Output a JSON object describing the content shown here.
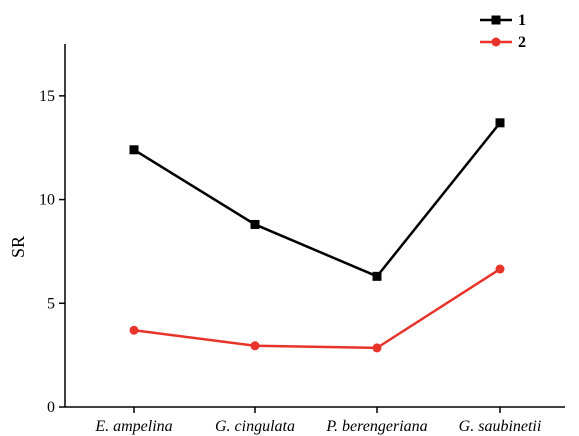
{
  "chart_data": {
    "type": "line",
    "title": "",
    "xlabel": "",
    "ylabel": "SR",
    "categories": [
      "E. ampelina",
      "G. cingulata",
      "P. berengeriana",
      "G. saubinetii"
    ],
    "ylim": [
      0,
      17.5
    ],
    "yticks": [
      0,
      5,
      10,
      15
    ],
    "grid": false,
    "legend_position": "top-right",
    "series": [
      {
        "name": "1",
        "values": [
          12.4,
          8.8,
          6.3,
          13.7
        ],
        "color": "#000000",
        "marker": "square"
      },
      {
        "name": "2",
        "values": [
          3.7,
          2.95,
          2.85,
          6.65
        ],
        "color": "#e8332a",
        "marker": "circle"
      }
    ]
  }
}
